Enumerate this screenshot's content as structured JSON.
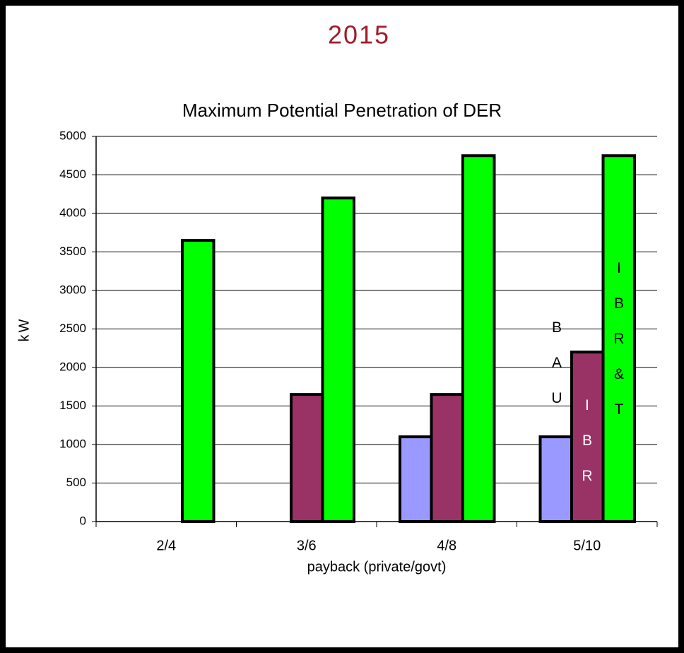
{
  "chart_data": {
    "type": "bar",
    "heading": "2015",
    "title": "Maximum Potential Penetration of DER",
    "x_label": "payback (private/govt)",
    "y_label": "kW",
    "categories": [
      "2/4",
      "3/6",
      "4/8",
      "5/10"
    ],
    "series": [
      {
        "name": "BAU",
        "color": "#9999ff",
        "values": [
          0,
          0,
          1100,
          1100
        ]
      },
      {
        "name": "IBR",
        "color": "#993366",
        "values": [
          0,
          1650,
          1650,
          2200
        ]
      },
      {
        "name": "IBR&T",
        "color": "#00ff00",
        "values": [
          3650,
          4200,
          4750,
          4750
        ]
      }
    ],
    "ylim": [
      0,
      5000
    ],
    "yticks": [
      0,
      500,
      1000,
      1500,
      2000,
      2500,
      3000,
      3500,
      4000,
      4500,
      5000
    ],
    "grid": true,
    "annotations": [
      {
        "text": "BAU",
        "color": "#000000"
      },
      {
        "text": "IBR",
        "color": "#ffffff"
      },
      {
        "text": "IBR&T",
        "color": "#000000"
      }
    ]
  }
}
